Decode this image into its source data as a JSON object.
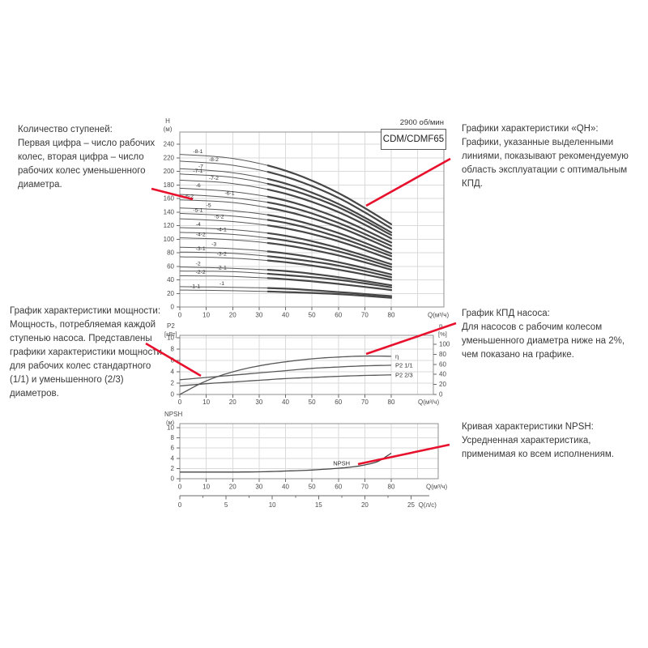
{
  "header": {
    "rpm": "2900 об/мин",
    "model": "CDM/CDMF65"
  },
  "annotations": {
    "stages": {
      "title": "Количество ступеней:",
      "body": "Первая цифра – число рабочих колес, вторая цифра – число рабочих колес уменьшенного диаметра."
    },
    "qh": {
      "title": "Графики характеристики «QH»:",
      "body": "Графики, указанные выделенными линиями, показывают рекомендуемую область эксплуатации с оптимальным КПД."
    },
    "power": {
      "title": "График характеристики мощности:",
      "body": "Мощность, потребляемая каждой ступенью насоса. Представлены графики характеристики мощности для рабочих колес стандартного (1/1) и уменьшенного (2/3) диаметров."
    },
    "efficiency": {
      "title": "График КПД насоса:",
      "body": "Для насосов с рабочим колесом уменьшенного диаметра ниже на 2%, чем показано на графике."
    },
    "npsh": {
      "title": "Кривая характеристики NPSH:",
      "body": "Усредненная характеристика, применимая ко всем исполнениям."
    }
  },
  "colors": {
    "accent": "#e8112d",
    "curve_thin": "#585858",
    "curve_bold": "#464646",
    "grid": "#dadada",
    "border": "#8f8f8f",
    "axis_text": "#4a4a4a"
  },
  "chart_data": [
    {
      "id": "qh",
      "type": "line",
      "title": "CDM/CDMF65",
      "subtitle": "2900 об/мин",
      "xlabel": "Q(м³/ч)",
      "ylabel": "H",
      "ylabel_unit": "(м)",
      "xlim": [
        0,
        100
      ],
      "ylim": [
        0,
        258
      ],
      "xticks": [
        0,
        10,
        20,
        30,
        40,
        50,
        60,
        70,
        80
      ],
      "yticks": [
        0,
        20,
        40,
        60,
        80,
        100,
        120,
        140,
        160,
        180,
        200,
        220,
        240
      ],
      "grid_x_extra": [
        90
      ],
      "bold_range_q": [
        32,
        80
      ],
      "x": [
        0,
        20,
        40,
        60,
        80
      ],
      "series": [
        {
          "name": "-8-1",
          "label_q": 5,
          "values": [
            225,
            219,
            201,
            168,
            122
          ]
        },
        {
          "name": "-8-2",
          "label_q": 11,
          "values": [
            215,
            209,
            192,
            161,
            116
          ]
        },
        {
          "name": "-7",
          "label_q": 7,
          "values": [
            204,
            198,
            182,
            152,
            110
          ]
        },
        {
          "name": "-7-1",
          "label_q": 5,
          "values": [
            196,
            191,
            175,
            147,
            106
          ]
        },
        {
          "name": "-7-2",
          "label_q": 11,
          "values": [
            187,
            182,
            167,
            140,
            101
          ]
        },
        {
          "name": "-6",
          "label_q": 6,
          "values": [
            175,
            170,
            157,
            131,
            95
          ]
        },
        {
          "name": "-6-1",
          "label_q": 17,
          "values": [
            166,
            161,
            149,
            124,
            90
          ]
        },
        {
          "name": "-6-2",
          "label_q": 1.5,
          "values": [
            158,
            154,
            141,
            118,
            85
          ]
        },
        {
          "name": "-5",
          "label_q": 10,
          "values": [
            146,
            142,
            131,
            109,
            79
          ]
        },
        {
          "name": "-5-1",
          "label_q": 5,
          "values": [
            138,
            134,
            124,
            103,
            75
          ]
        },
        {
          "name": "-5-2",
          "label_q": 13,
          "values": [
            130,
            126,
            116,
            97,
            70
          ]
        },
        {
          "name": "-4",
          "label_q": 6,
          "values": [
            117,
            114,
            105,
            87,
            63
          ]
        },
        {
          "name": "-4-1",
          "label_q": 14,
          "values": [
            110,
            107,
            98,
            82,
            59
          ]
        },
        {
          "name": "-4-2",
          "label_q": 6,
          "values": [
            102,
            99,
            91,
            76,
            55
          ]
        },
        {
          "name": "-3",
          "label_q": 12,
          "values": [
            88,
            86,
            79,
            66,
            48
          ]
        },
        {
          "name": "-3-1",
          "label_q": 6,
          "values": [
            81,
            79,
            72,
            61,
            44
          ]
        },
        {
          "name": "-3-2",
          "label_q": 14,
          "values": [
            74,
            72,
            66,
            55,
            40
          ]
        },
        {
          "name": "-2",
          "label_q": 6,
          "values": [
            59,
            57,
            53,
            44,
            32
          ]
        },
        {
          "name": "-2-1",
          "label_q": 14,
          "values": [
            53,
            52,
            47,
            40,
            29
          ]
        },
        {
          "name": "-2-2",
          "label_q": 6,
          "values": [
            46,
            45,
            41,
            34,
            25
          ]
        },
        {
          "name": "-1",
          "label_q": 15,
          "values": [
            30,
            29,
            27,
            22,
            16
          ]
        },
        {
          "name": "-1-1",
          "label_q": 4,
          "values": [
            25,
            24,
            22,
            19,
            13.5
          ]
        }
      ]
    },
    {
      "id": "power_efficiency",
      "type": "line",
      "xlabel": "Q(м³/ч)",
      "ylabel_left": "P2",
      "ylabel_left_unit": "[кВт]",
      "ylabel_right": "η",
      "ylabel_right_unit": "[%]",
      "xticks": [
        0,
        10,
        20,
        30,
        40,
        50,
        60,
        70,
        80
      ],
      "yticks_left": [
        0,
        2,
        4,
        6,
        8,
        10
      ],
      "yticks_right": [
        0,
        20,
        40,
        60,
        80,
        100
      ],
      "grid_x_extra": [
        90
      ],
      "x": [
        0,
        10,
        20,
        30,
        40,
        50,
        60,
        70,
        80
      ],
      "series": [
        {
          "name": "η",
          "axis": "right",
          "values": [
            0,
            27,
            45,
            57,
            65,
            71,
            74.5,
            76.5,
            76
          ]
        },
        {
          "name": "P2 1/1",
          "axis": "left",
          "values": [
            2.6,
            3.0,
            3.4,
            3.8,
            4.2,
            4.6,
            4.85,
            5.05,
            5.15
          ]
        },
        {
          "name": "P2 2/3",
          "axis": "left",
          "values": [
            1.5,
            1.9,
            2.2,
            2.5,
            2.8,
            3.0,
            3.2,
            3.35,
            3.45
          ]
        }
      ]
    },
    {
      "id": "npsh",
      "type": "line",
      "xlabel": "Q(м³/ч)",
      "ylabel": "NPSH",
      "ylabel_unit": "(м)",
      "xticks": [
        0,
        10,
        20,
        30,
        40,
        50,
        60,
        70,
        80
      ],
      "yticks": [
        0,
        2,
        4,
        6,
        8,
        10
      ],
      "grid_x_extra": [
        90
      ],
      "x2label": "Q(л/с)",
      "x2ticks": [
        0,
        5,
        10,
        15,
        20,
        25
      ],
      "x": [
        0,
        10,
        20,
        30,
        40,
        50,
        60,
        65,
        70,
        75,
        80
      ],
      "series": [
        {
          "name": "NPSH",
          "label_q": 58,
          "values": [
            1.3,
            1.3,
            1.3,
            1.35,
            1.5,
            1.7,
            2.05,
            2.3,
            2.7,
            3.4,
            5.0
          ]
        }
      ]
    }
  ]
}
